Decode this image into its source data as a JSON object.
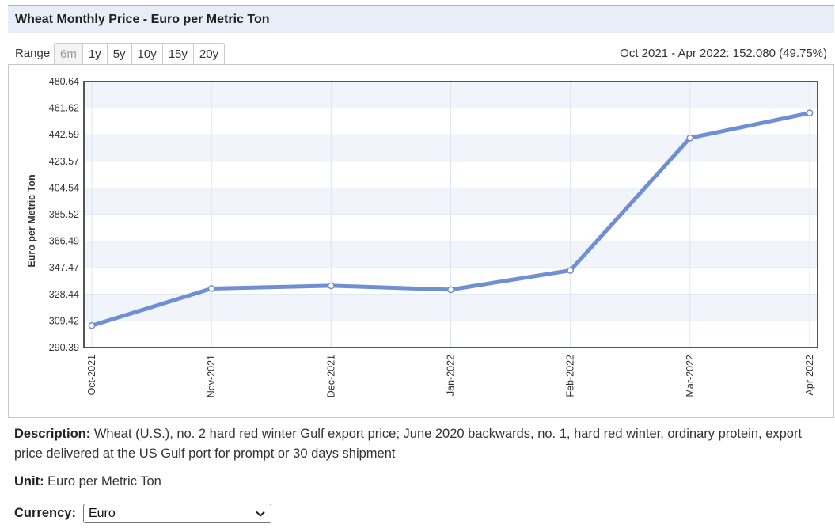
{
  "header": {
    "title": "Wheat Monthly Price - Euro per Metric Ton"
  },
  "range": {
    "label": "Range",
    "buttons": [
      "6m",
      "1y",
      "5y",
      "10y",
      "15y",
      "20y"
    ],
    "active": "6m",
    "summary": "Oct 2021 - Apr 2022: 152.080 (49.75%)"
  },
  "chart_data": {
    "type": "line",
    "title": "",
    "xlabel": "",
    "ylabel": "Euro per Metric Ton",
    "categories": [
      "Oct-2021",
      "Nov-2021",
      "Dec-2021",
      "Jan-2022",
      "Feb-2022",
      "Mar-2022",
      "Apr-2022"
    ],
    "series": [
      {
        "values": [
          306.1,
          332.6,
          334.6,
          331.8,
          345.6,
          440.3,
          458.2
        ]
      }
    ],
    "yticks": [
      "290.39",
      "309.42",
      "328.44",
      "347.47",
      "366.49",
      "385.52",
      "404.54",
      "423.57",
      "442.59",
      "461.62",
      "480.64"
    ],
    "ylim": [
      290.39,
      480.64
    ],
    "grid": true,
    "line_color": "#6f8fd4"
  },
  "description": {
    "label": "Description:",
    "text": "Wheat (U.S.), no. 2 hard red winter Gulf export price; June 2020 backwards, no. 1, hard red winter, ordinary protein, export price delivered at the US Gulf port for prompt or 30 days shipment"
  },
  "unit": {
    "label": "Unit:",
    "value": "Euro per Metric Ton"
  },
  "currency": {
    "label": "Currency:",
    "selected": "Euro"
  }
}
